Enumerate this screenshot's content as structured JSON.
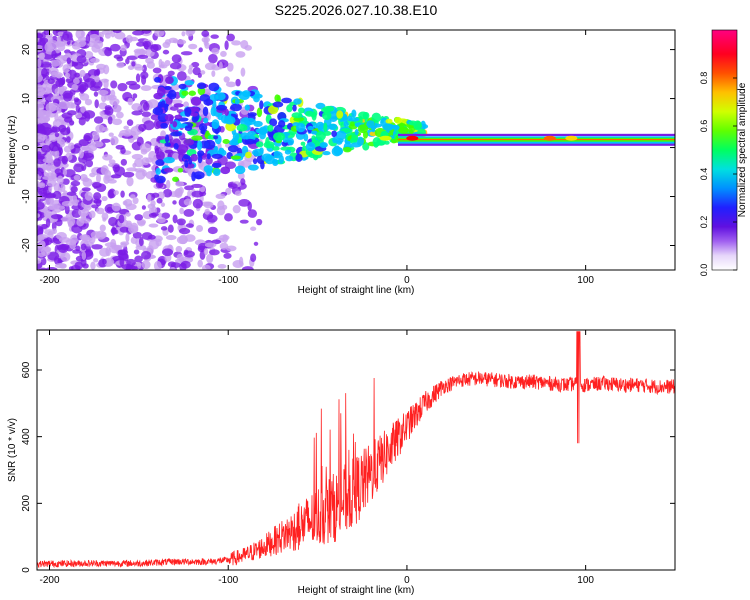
{
  "figure": {
    "title": "S225.2026.027.10.38.E10"
  },
  "chart_data": [
    {
      "type": "heatmap",
      "xlabel": "Height of straight line (km)",
      "ylabel": "Frequency (Hz)",
      "xlim": [
        -207,
        150
      ],
      "ylim": [
        -25,
        24
      ],
      "xticks": [
        -200,
        -100,
        0,
        100
      ],
      "yticks": [
        -20,
        -10,
        0,
        10,
        20
      ],
      "colorbar": {
        "label": "Normalized spectral amplitude",
        "range": [
          0,
          1
        ],
        "ticks": [
          "0.0",
          "0.2",
          "0.4",
          "0.6",
          "0.8"
        ],
        "colormap": [
          "#ffffff",
          "#c8a0f0",
          "#7a1be6",
          "#2020ff",
          "#00c0ff",
          "#00ff80",
          "#40ff00",
          "#d0ff00",
          "#ffd000",
          "#ff6000",
          "#ff0000",
          "#ff00a0"
        ]
      },
      "description_values": {
        "dominant_frequency_hz": 1.5,
        "noise_region_km": [
          -207,
          -100
        ],
        "transition_region_km": [
          -100,
          10
        ],
        "stable_band_km": [
          10,
          150
        ]
      }
    },
    {
      "type": "line",
      "xlabel": "Height of straight line (km)",
      "ylabel": "SNR (10 * v/v)",
      "xlim": [
        -207,
        150
      ],
      "ylim": [
        0,
        720
      ],
      "xticks": [
        -200,
        -100,
        0,
        100
      ],
      "yticks": [
        0,
        200,
        400,
        600
      ],
      "series": [
        {
          "color": "#ff2020",
          "x": [
            -207,
            -180,
            -150,
            -130,
            -110,
            -100,
            -90,
            -80,
            -70,
            -60,
            -50,
            -40,
            -30,
            -20,
            -10,
            0,
            10,
            20,
            30,
            40,
            50,
            60,
            70,
            80,
            90,
            95,
            100,
            110,
            120,
            130,
            140,
            150
          ],
          "y": [
            18,
            20,
            20,
            25,
            25,
            30,
            45,
            70,
            100,
            130,
            160,
            190,
            230,
            290,
            360,
            430,
            500,
            550,
            570,
            575,
            570,
            565,
            565,
            560,
            555,
            560,
            555,
            560,
            555,
            555,
            550,
            550
          ]
        }
      ]
    }
  ]
}
